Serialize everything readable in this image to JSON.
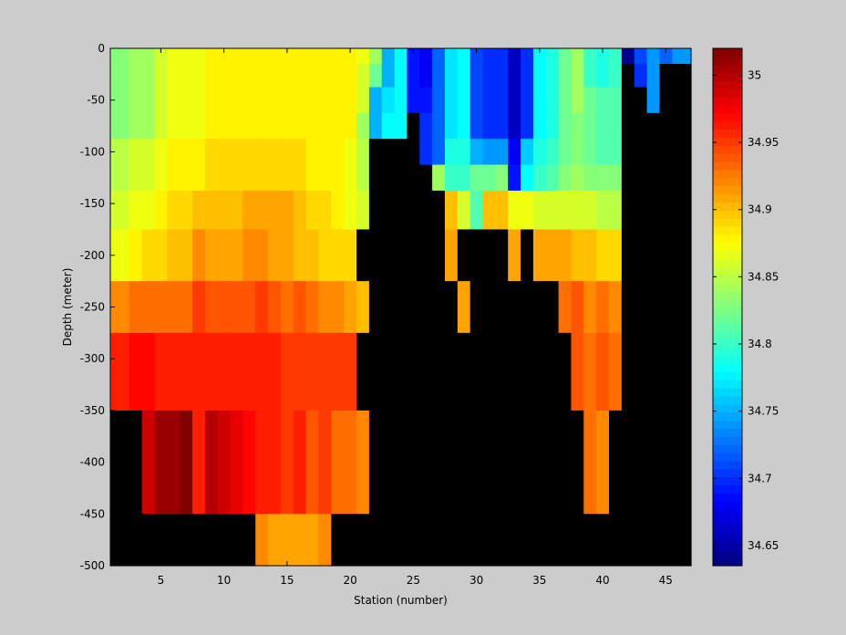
{
  "chart_data": {
    "type": "heatmap",
    "title": "",
    "xlabel": "Station (number)",
    "ylabel": "Depth (meter)",
    "xlim": [
      1,
      47
    ],
    "ylim": [
      -500,
      0
    ],
    "x_ticks": [
      5,
      10,
      15,
      20,
      25,
      30,
      35,
      40,
      45
    ],
    "y_ticks": [
      0,
      -50,
      -100,
      -150,
      -200,
      -250,
      -300,
      -350,
      -400,
      -450,
      -500
    ],
    "x_tick_labels": [
      "5",
      "10",
      "15",
      "20",
      "25",
      "30",
      "35",
      "40",
      "45"
    ],
    "y_tick_labels": [
      "0",
      "-50",
      "-100",
      "-150",
      "-200",
      "-250",
      "-300",
      "-350",
      "-400",
      "-450",
      "-500"
    ],
    "colormap": "jet",
    "missing_color": "#000000",
    "depth_levels": [
      -5,
      -25,
      -50,
      -75,
      -100,
      -125,
      -150,
      -200,
      -250,
      -300,
      -400,
      -500
    ],
    "stations": [
      1,
      2,
      3,
      4,
      5,
      6,
      7,
      8,
      9,
      10,
      11,
      12,
      13,
      14,
      15,
      16,
      17,
      18,
      19,
      20,
      21,
      22,
      23,
      24,
      25,
      26,
      27,
      28,
      29,
      30,
      31,
      32,
      33,
      34,
      35,
      36,
      37,
      38,
      39,
      40,
      41,
      42,
      43,
      44,
      45,
      46,
      47
    ],
    "values": [
      [
        34.83,
        34.83,
        34.84,
        34.84,
        34.86,
        34.87,
        34.87,
        34.87,
        34.88,
        34.88,
        34.88,
        34.88,
        34.88,
        34.88,
        34.88,
        34.88,
        34.88,
        34.88,
        34.88,
        34.88,
        34.87,
        34.84,
        34.75,
        34.78,
        34.69,
        34.68,
        34.72,
        34.77,
        34.78,
        34.71,
        34.7,
        34.7,
        34.66,
        34.7,
        34.78,
        34.79,
        34.82,
        34.84,
        34.8,
        34.79,
        34.8,
        34.64,
        34.71,
        34.74,
        34.72,
        34.74,
        34.74
      ],
      [
        34.83,
        34.83,
        34.84,
        34.84,
        34.86,
        34.87,
        34.87,
        34.87,
        34.88,
        34.88,
        34.88,
        34.88,
        34.88,
        34.88,
        34.88,
        34.88,
        34.88,
        34.88,
        34.88,
        34.88,
        34.86,
        34.82,
        34.75,
        34.78,
        34.69,
        34.68,
        34.72,
        34.77,
        34.78,
        34.71,
        34.7,
        34.7,
        34.66,
        34.7,
        34.78,
        34.79,
        34.82,
        34.84,
        34.8,
        34.79,
        34.8,
        null,
        34.7,
        34.74,
        null,
        null,
        null
      ],
      [
        34.83,
        34.83,
        34.84,
        34.84,
        34.86,
        34.87,
        34.87,
        34.87,
        34.88,
        34.88,
        34.88,
        34.88,
        34.88,
        34.88,
        34.88,
        34.88,
        34.88,
        34.88,
        34.88,
        34.88,
        34.86,
        34.75,
        34.77,
        34.78,
        34.69,
        34.69,
        34.72,
        34.77,
        34.78,
        34.71,
        34.7,
        34.7,
        34.66,
        34.7,
        34.78,
        34.79,
        34.82,
        34.84,
        34.82,
        34.81,
        34.81,
        null,
        null,
        34.74,
        null,
        null,
        null
      ],
      [
        34.83,
        34.83,
        34.84,
        34.84,
        34.86,
        34.87,
        34.87,
        34.87,
        34.88,
        34.88,
        34.88,
        34.88,
        34.88,
        34.88,
        34.88,
        34.88,
        34.88,
        34.88,
        34.88,
        34.88,
        34.84,
        34.75,
        34.78,
        34.78,
        null,
        34.7,
        34.72,
        34.77,
        34.78,
        34.71,
        34.7,
        34.7,
        34.66,
        34.7,
        34.78,
        34.79,
        34.82,
        34.83,
        34.82,
        34.81,
        34.81,
        null,
        null,
        null,
        null,
        null,
        null
      ],
      [
        34.85,
        34.85,
        34.86,
        34.86,
        34.87,
        34.88,
        34.88,
        34.88,
        34.89,
        34.89,
        34.89,
        34.89,
        34.89,
        34.89,
        34.89,
        34.89,
        34.88,
        34.88,
        34.88,
        34.87,
        34.85,
        null,
        null,
        null,
        null,
        34.7,
        34.72,
        34.79,
        34.79,
        34.75,
        34.74,
        34.74,
        34.68,
        34.76,
        34.79,
        34.8,
        34.82,
        34.83,
        34.82,
        34.81,
        34.81,
        null,
        null,
        null,
        null,
        null,
        null
      ],
      [
        34.85,
        34.85,
        34.86,
        34.86,
        34.87,
        34.88,
        34.88,
        34.88,
        34.89,
        34.89,
        34.89,
        34.89,
        34.89,
        34.89,
        34.89,
        34.89,
        34.88,
        34.88,
        34.88,
        34.87,
        34.85,
        null,
        null,
        null,
        null,
        null,
        34.84,
        34.8,
        34.8,
        34.82,
        34.82,
        34.83,
        34.69,
        34.78,
        34.8,
        34.81,
        34.83,
        34.84,
        34.83,
        34.83,
        34.83,
        null,
        null,
        null,
        null,
        null,
        null
      ],
      [
        34.86,
        34.86,
        34.87,
        34.87,
        34.88,
        34.89,
        34.89,
        34.9,
        34.9,
        34.9,
        34.9,
        34.91,
        34.91,
        34.91,
        34.91,
        34.9,
        34.89,
        34.89,
        34.88,
        34.87,
        34.86,
        null,
        null,
        null,
        null,
        null,
        null,
        34.9,
        34.86,
        34.81,
        34.9,
        34.9,
        34.87,
        34.87,
        34.86,
        34.86,
        34.86,
        34.86,
        34.86,
        34.85,
        34.85,
        null,
        null,
        null,
        null,
        null,
        null
      ],
      [
        34.87,
        34.87,
        34.88,
        34.89,
        34.89,
        34.9,
        34.9,
        34.92,
        34.91,
        34.91,
        34.91,
        34.92,
        34.92,
        34.91,
        34.91,
        34.9,
        34.9,
        34.89,
        34.89,
        34.89,
        null,
        null,
        null,
        null,
        null,
        null,
        null,
        34.91,
        null,
        null,
        null,
        null,
        34.91,
        null,
        34.91,
        34.91,
        34.91,
        34.9,
        34.9,
        34.89,
        34.89,
        null,
        null,
        null,
        null,
        null,
        null
      ],
      [
        34.92,
        34.92,
        34.93,
        34.93,
        34.93,
        34.93,
        34.93,
        34.95,
        34.94,
        34.94,
        34.94,
        34.94,
        34.95,
        34.94,
        34.93,
        34.94,
        34.93,
        34.92,
        34.92,
        34.91,
        34.9,
        null,
        null,
        null,
        null,
        null,
        null,
        null,
        34.91,
        null,
        null,
        null,
        null,
        null,
        null,
        null,
        34.93,
        34.94,
        34.92,
        34.93,
        34.92,
        null,
        null,
        null,
        null,
        null,
        null
      ],
      [
        34.96,
        34.96,
        34.97,
        34.97,
        34.96,
        34.96,
        34.96,
        34.96,
        34.96,
        34.96,
        34.96,
        34.96,
        34.96,
        34.96,
        34.95,
        34.95,
        34.95,
        34.95,
        34.95,
        34.95,
        null,
        null,
        null,
        null,
        null,
        null,
        null,
        null,
        null,
        null,
        null,
        null,
        null,
        null,
        null,
        null,
        null,
        34.94,
        34.93,
        34.94,
        34.93,
        null,
        null,
        null,
        null,
        null,
        null
      ],
      [
        null,
        null,
        null,
        34.99,
        35.01,
        35.01,
        35.05,
        34.96,
        35.0,
        34.99,
        34.98,
        34.97,
        34.96,
        34.96,
        34.95,
        34.96,
        34.94,
        34.95,
        34.93,
        34.93,
        34.92,
        null,
        null,
        null,
        null,
        null,
        null,
        null,
        null,
        null,
        null,
        null,
        null,
        null,
        null,
        null,
        null,
        null,
        34.93,
        34.92,
        null,
        null,
        null,
        null,
        null,
        null,
        null
      ],
      [
        null,
        null,
        null,
        null,
        null,
        null,
        null,
        null,
        null,
        null,
        null,
        null,
        34.92,
        34.91,
        34.91,
        34.91,
        34.91,
        34.92,
        null,
        null,
        null,
        null,
        null,
        null,
        null,
        null,
        null,
        null,
        null,
        null,
        null,
        null,
        null,
        null,
        null,
        null,
        null,
        null,
        null,
        null,
        null,
        null,
        null,
        null,
        null,
        null,
        null
      ]
    ],
    "colorbar": {
      "limits": [
        34.635,
        35.02
      ],
      "ticks": [
        34.65,
        34.7,
        34.75,
        34.8,
        34.85,
        34.9,
        34.95,
        35
      ],
      "tick_labels": [
        "34.65",
        "34.7",
        "34.75",
        "34.8",
        "34.85",
        "34.9",
        "34.95",
        "35"
      ]
    },
    "grid": false
  }
}
